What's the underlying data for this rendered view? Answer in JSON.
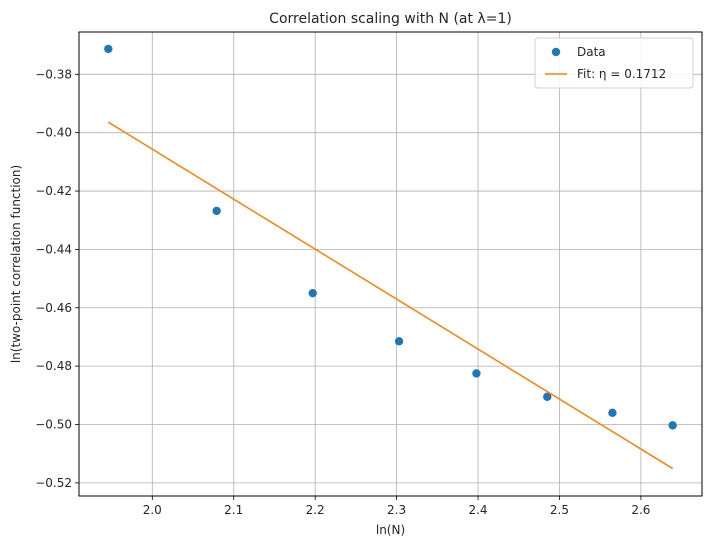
{
  "chart_data": {
    "type": "scatter",
    "title": "Correlation scaling with N (at λ=1)",
    "xlabel": "ln(N)",
    "ylabel": "ln(two-point correlation function)",
    "xlim": [
      1.91,
      2.675
    ],
    "ylim": [
      -0.5245,
      -0.3655
    ],
    "xticks": [
      2.0,
      2.1,
      2.2,
      2.3,
      2.4,
      2.5,
      2.6
    ],
    "xtick_labels": [
      "2.0",
      "2.1",
      "2.2",
      "2.3",
      "2.4",
      "2.5",
      "2.6"
    ],
    "yticks": [
      -0.38,
      -0.4,
      -0.42,
      -0.44,
      -0.46,
      -0.48,
      -0.5,
      -0.52
    ],
    "ytick_labels": [
      "−0.38",
      "−0.40",
      "−0.42",
      "−0.44",
      "−0.46",
      "−0.48",
      "−0.50",
      "−0.52"
    ],
    "grid": true,
    "legend_position": "top-right",
    "series": [
      {
        "name": "Data",
        "kind": "points",
        "color": "#1f77b4",
        "x": [
          1.946,
          2.079,
          2.197,
          2.303,
          2.398,
          2.485,
          2.565,
          2.639
        ],
        "y": [
          -0.3713,
          -0.4268,
          -0.455,
          -0.4715,
          -0.4825,
          -0.4905,
          -0.496,
          -0.5003
        ]
      },
      {
        "name": "Fit: η = 0.1712",
        "kind": "line",
        "color": "#ff7f0e",
        "x": [
          1.946,
          2.639
        ],
        "y": [
          -0.3964,
          -0.5151
        ]
      }
    ]
  }
}
